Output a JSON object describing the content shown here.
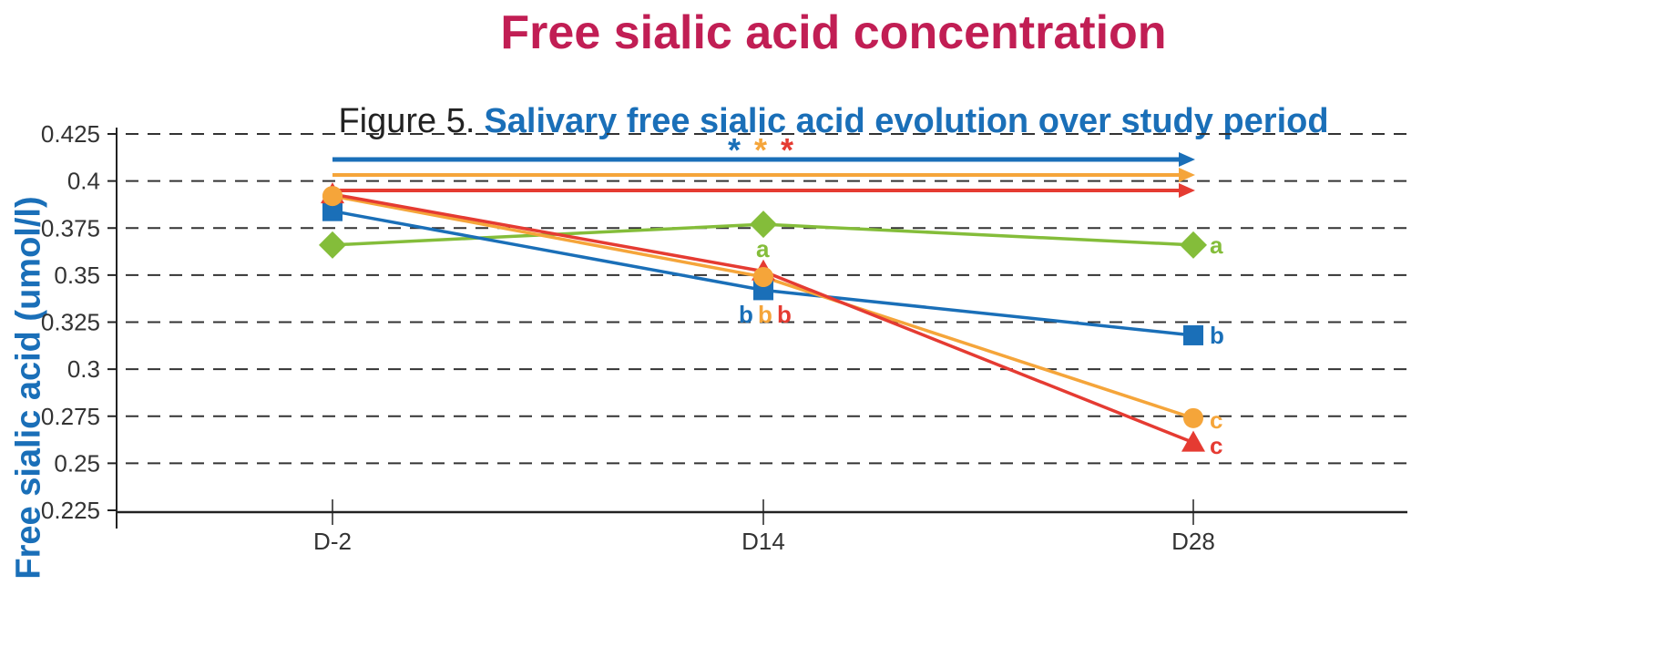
{
  "title": "Free sialic acid concentration",
  "figure": {
    "number": "Figure 5.",
    "caption": "Salivary free sialic acid evolution over study period"
  },
  "colors": {
    "title": "#c11e54",
    "blue": "#1a6fb8",
    "orange": "#f5a53a",
    "red": "#e53b32",
    "green": "#84bd3a",
    "grid": "#333333"
  },
  "chart_data": {
    "type": "line",
    "title": "Free sialic acid concentration",
    "subtitle": "Figure 5. Salivary free sialic acid evolution over study period",
    "xlabel": "",
    "ylabel": "Free sialic acid (umol/l)",
    "categories": [
      "D-2",
      "D14",
      "D28"
    ],
    "ylim": [
      0.225,
      0.425
    ],
    "yticks": [
      "0.425",
      "0.4",
      "0.375",
      "0.35",
      "0.325",
      "0.3",
      "0.275",
      "0.25",
      "0.225"
    ],
    "grid": "horizontal dashed",
    "legend": "none",
    "series": [
      {
        "name": "blue-square",
        "color": "#1a6fb8",
        "marker": "square",
        "values": [
          0.384,
          0.342,
          0.318
        ],
        "labels": [
          "",
          "b",
          "b"
        ]
      },
      {
        "name": "orange-circle",
        "color": "#f5a53a",
        "marker": "circle",
        "values": [
          0.392,
          0.349,
          0.274
        ],
        "labels": [
          "",
          "b",
          "c"
        ]
      },
      {
        "name": "red-triangle",
        "color": "#e53b32",
        "marker": "triangle",
        "values": [
          0.393,
          0.352,
          0.261
        ],
        "labels": [
          "",
          "b",
          "c"
        ]
      },
      {
        "name": "green-diamond",
        "color": "#84bd3a",
        "marker": "diamond",
        "values": [
          0.366,
          0.377,
          0.366
        ],
        "labels": [
          "",
          "a",
          "a"
        ]
      }
    ],
    "annotations": [
      {
        "type": "significance-arrow",
        "color": "#1a6fb8",
        "from": "D-2",
        "to": "D28"
      },
      {
        "type": "significance-arrow",
        "color": "#f5a53a",
        "from": "D-2",
        "to": "D28"
      },
      {
        "type": "significance-arrow",
        "color": "#e53b32",
        "from": "D-2",
        "to": "D28"
      },
      {
        "type": "text",
        "text": "* * *",
        "note": "blue, orange, red asterisks above arrows"
      }
    ]
  },
  "labels": {
    "star": "*",
    "b": "b",
    "a": "a",
    "c": "c"
  }
}
